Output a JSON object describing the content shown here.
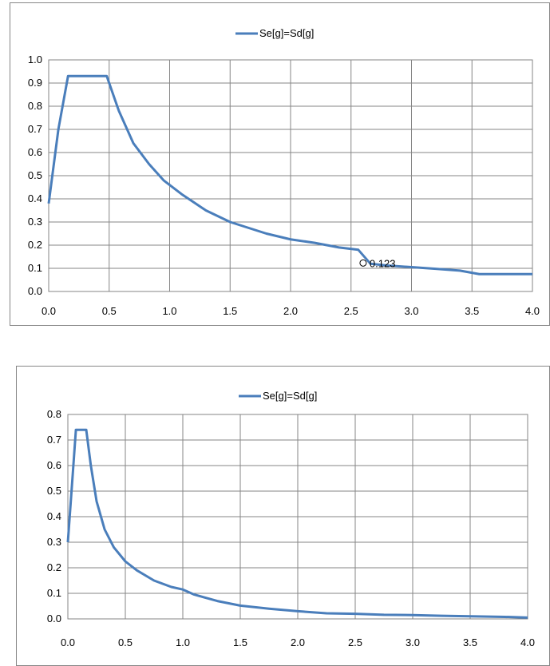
{
  "chart_data": [
    {
      "type": "line",
      "legend": "Se[g]=Sd[g]",
      "legend_position": "top",
      "grid": true,
      "color": "#4a7ebb",
      "xlim": [
        0,
        4
      ],
      "ylim": [
        0,
        1
      ],
      "x_ticks": [
        "0.0",
        "0.5",
        "1.0",
        "1.5",
        "2.0",
        "2.5",
        "3.0",
        "3.5",
        "4.0"
      ],
      "y_ticks": [
        "0.0",
        "0.1",
        "0.2",
        "0.3",
        "0.4",
        "0.5",
        "0.6",
        "0.7",
        "0.8",
        "0.9",
        "1.0"
      ],
      "series": [
        {
          "name": "Se[g]=Sd[g]",
          "x": [
            0.0,
            0.08,
            0.16,
            0.3,
            0.48,
            0.58,
            0.7,
            0.83,
            0.95,
            1.1,
            1.3,
            1.5,
            1.8,
            2.0,
            2.2,
            2.4,
            2.56,
            2.66,
            2.8,
            3.0,
            3.2,
            3.4,
            3.56,
            3.8,
            4.0
          ],
          "y": [
            0.38,
            0.7,
            0.93,
            0.93,
            0.93,
            0.78,
            0.64,
            0.55,
            0.48,
            0.42,
            0.35,
            0.3,
            0.25,
            0.225,
            0.21,
            0.19,
            0.18,
            0.12,
            0.112,
            0.105,
            0.098,
            0.09,
            0.075,
            0.075,
            0.075
          ]
        }
      ],
      "annotation": {
        "text": "0.123",
        "x": 2.6,
        "y": 0.123
      }
    },
    {
      "type": "line",
      "legend": "Se[g]=Sd[g]",
      "legend_position": "top",
      "grid": true,
      "color": "#4a7ebb",
      "xlim": [
        0,
        4
      ],
      "ylim": [
        0,
        0.8
      ],
      "x_ticks": [
        "0.0",
        "0.5",
        "1.0",
        "1.5",
        "2.0",
        "2.5",
        "3.0",
        "3.5",
        "4.0"
      ],
      "y_ticks": [
        "0.0",
        "0.1",
        "0.2",
        "0.3",
        "0.4",
        "0.5",
        "0.6",
        "0.7",
        "0.8"
      ],
      "series": [
        {
          "name": "Se[g]=Sd[g]",
          "x": [
            0.0,
            0.04,
            0.07,
            0.1,
            0.16,
            0.2,
            0.25,
            0.32,
            0.4,
            0.5,
            0.6,
            0.75,
            0.9,
            1.0,
            1.1,
            1.3,
            1.5,
            1.75,
            2.0,
            2.25,
            2.5,
            2.75,
            3.0,
            3.25,
            3.5,
            3.8,
            4.0
          ],
          "y": [
            0.3,
            0.55,
            0.74,
            0.74,
            0.74,
            0.6,
            0.46,
            0.35,
            0.28,
            0.225,
            0.19,
            0.15,
            0.125,
            0.115,
            0.095,
            0.07,
            0.052,
            0.04,
            0.03,
            0.022,
            0.02,
            0.016,
            0.015,
            0.012,
            0.01,
            0.008,
            0.005
          ]
        }
      ]
    }
  ]
}
